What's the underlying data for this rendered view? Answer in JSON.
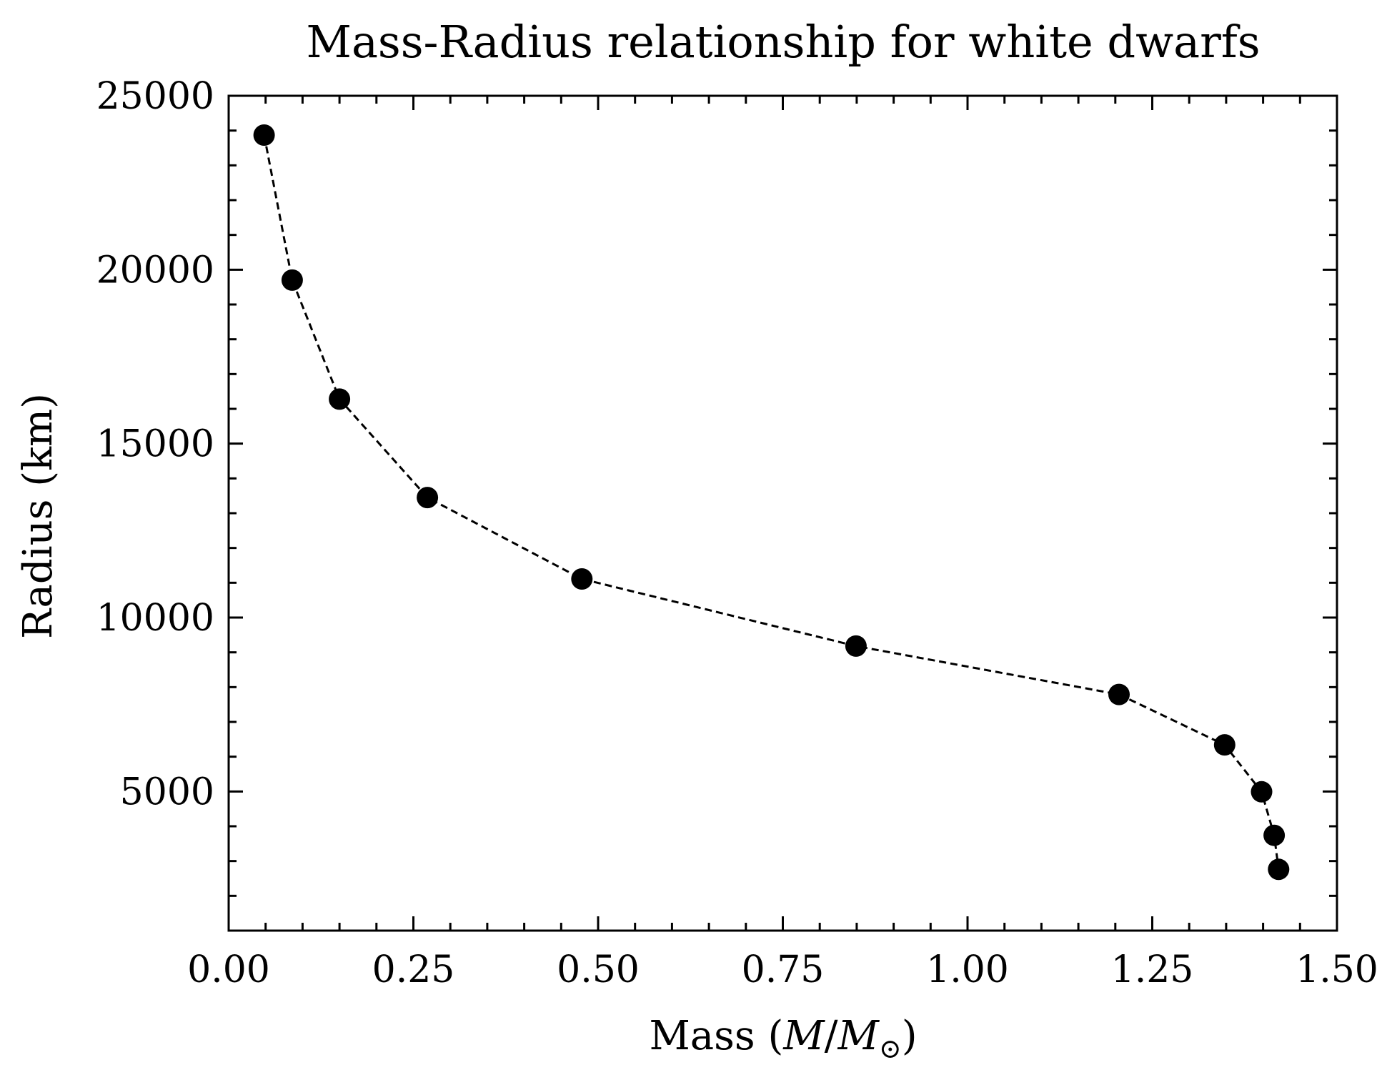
{
  "chart_data": {
    "type": "line",
    "title": "Mass-Radius relationship for white dwarfs",
    "xlabel": {
      "prefix": "Mass (",
      "var": "M",
      "slash": "/",
      "var_sub": "M",
      "sub": "⊙",
      "suffix": ")"
    },
    "ylabel": "Radius (km)",
    "xlim": [
      0.0,
      1.5
    ],
    "ylim": [
      1000,
      25000
    ],
    "x_ticks": [
      0.0,
      0.25,
      0.5,
      0.75,
      1.0,
      1.25,
      1.5
    ],
    "x_tick_labels": [
      "0.00",
      "0.25",
      "0.50",
      "0.75",
      "1.00",
      "1.25",
      "1.50"
    ],
    "y_ticks": [
      5000,
      10000,
      15000,
      20000,
      25000
    ],
    "y_tick_labels": [
      "5000",
      "10000",
      "15000",
      "20000",
      "25000"
    ],
    "x_minor_step": 0.05,
    "y_minor_step": 1000,
    "grid": false,
    "legend": "none",
    "series": [
      {
        "line_style": "dashed",
        "marker": "circle",
        "color": "#000000",
        "x": [
          0.048,
          0.086,
          0.15,
          0.269,
          0.478,
          0.849,
          1.205,
          1.348,
          1.398,
          1.415,
          1.421
        ],
        "y": [
          23870,
          19700,
          16280,
          13450,
          11110,
          9180,
          7790,
          6340,
          4990,
          3740,
          2760
        ]
      }
    ]
  }
}
